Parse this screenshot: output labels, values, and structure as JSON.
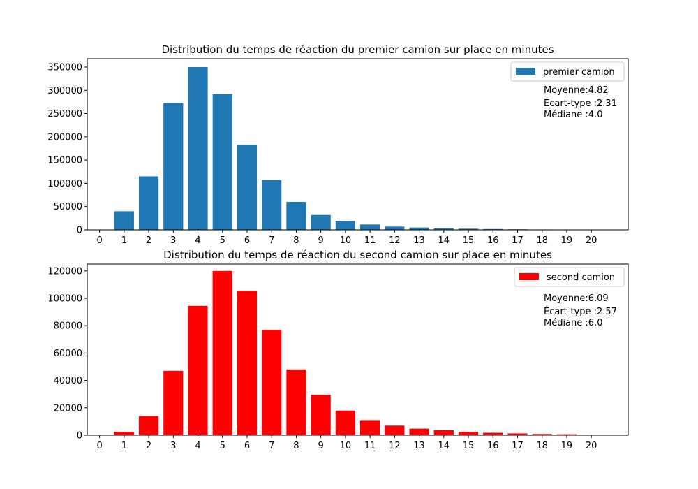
{
  "chart_data": [
    {
      "type": "bar",
      "title": "Distribution du temps de réaction du premier camion sur place en minutes",
      "xlabel": "",
      "ylabel": "",
      "x_ticks": [
        "0",
        "1",
        "2",
        "3",
        "4",
        "5",
        "6",
        "7",
        "8",
        "9",
        "10",
        "11",
        "12",
        "13",
        "14",
        "15",
        "16",
        "17",
        "18",
        "19",
        "20"
      ],
      "y_ticks": [
        "0",
        "50000",
        "100000",
        "150000",
        "200000",
        "250000",
        "300000",
        "350000"
      ],
      "xlim": [
        -0.5,
        21.5
      ],
      "ylim": [
        0,
        368000
      ],
      "series": [
        {
          "name": "premier camion",
          "color": "#1f77b4",
          "x": [
            1,
            2,
            3,
            4,
            5,
            6,
            7,
            8,
            9,
            10,
            11,
            12,
            13,
            14,
            15,
            16,
            17,
            18,
            19
          ],
          "values": [
            40000,
            115000,
            273000,
            350000,
            292000,
            183000,
            107000,
            60000,
            32000,
            19000,
            11500,
            7000,
            5000,
            3500,
            2500,
            1800,
            1200,
            800,
            500
          ]
        }
      ],
      "legend": {
        "position": "top-right",
        "label": "premier camion"
      },
      "stats": [
        "Moyenne:4.82",
        "Écart-type :2.31",
        "Médiane :4.0"
      ],
      "grid": false
    },
    {
      "type": "bar",
      "title": "Distribution du temps de réaction du second camion sur place en minutes",
      "xlabel": "",
      "ylabel": "",
      "x_ticks": [
        "0",
        "1",
        "2",
        "3",
        "4",
        "5",
        "6",
        "7",
        "8",
        "9",
        "10",
        "11",
        "12",
        "13",
        "14",
        "15",
        "16",
        "17",
        "18",
        "19",
        "20"
      ],
      "y_ticks": [
        "0",
        "20000",
        "40000",
        "60000",
        "80000",
        "100000",
        "120000"
      ],
      "xlim": [
        -0.5,
        21.5
      ],
      "ylim": [
        0,
        125000
      ],
      "series": [
        {
          "name": "second camion",
          "color": "#ff0000",
          "x": [
            1,
            2,
            3,
            4,
            5,
            6,
            7,
            8,
            9,
            10,
            11,
            12,
            13,
            14,
            15,
            16,
            17,
            18,
            19
          ],
          "values": [
            2500,
            14000,
            47000,
            94500,
            120000,
            105500,
            77000,
            48000,
            29500,
            18000,
            11000,
            7000,
            4800,
            3600,
            2500,
            1800,
            1300,
            900,
            700
          ]
        }
      ],
      "legend": {
        "position": "top-right",
        "label": "second camion"
      },
      "stats": [
        "Moyenne:6.09",
        "Écart-type :2.57",
        "Médiane :6.0"
      ],
      "grid": false
    }
  ]
}
